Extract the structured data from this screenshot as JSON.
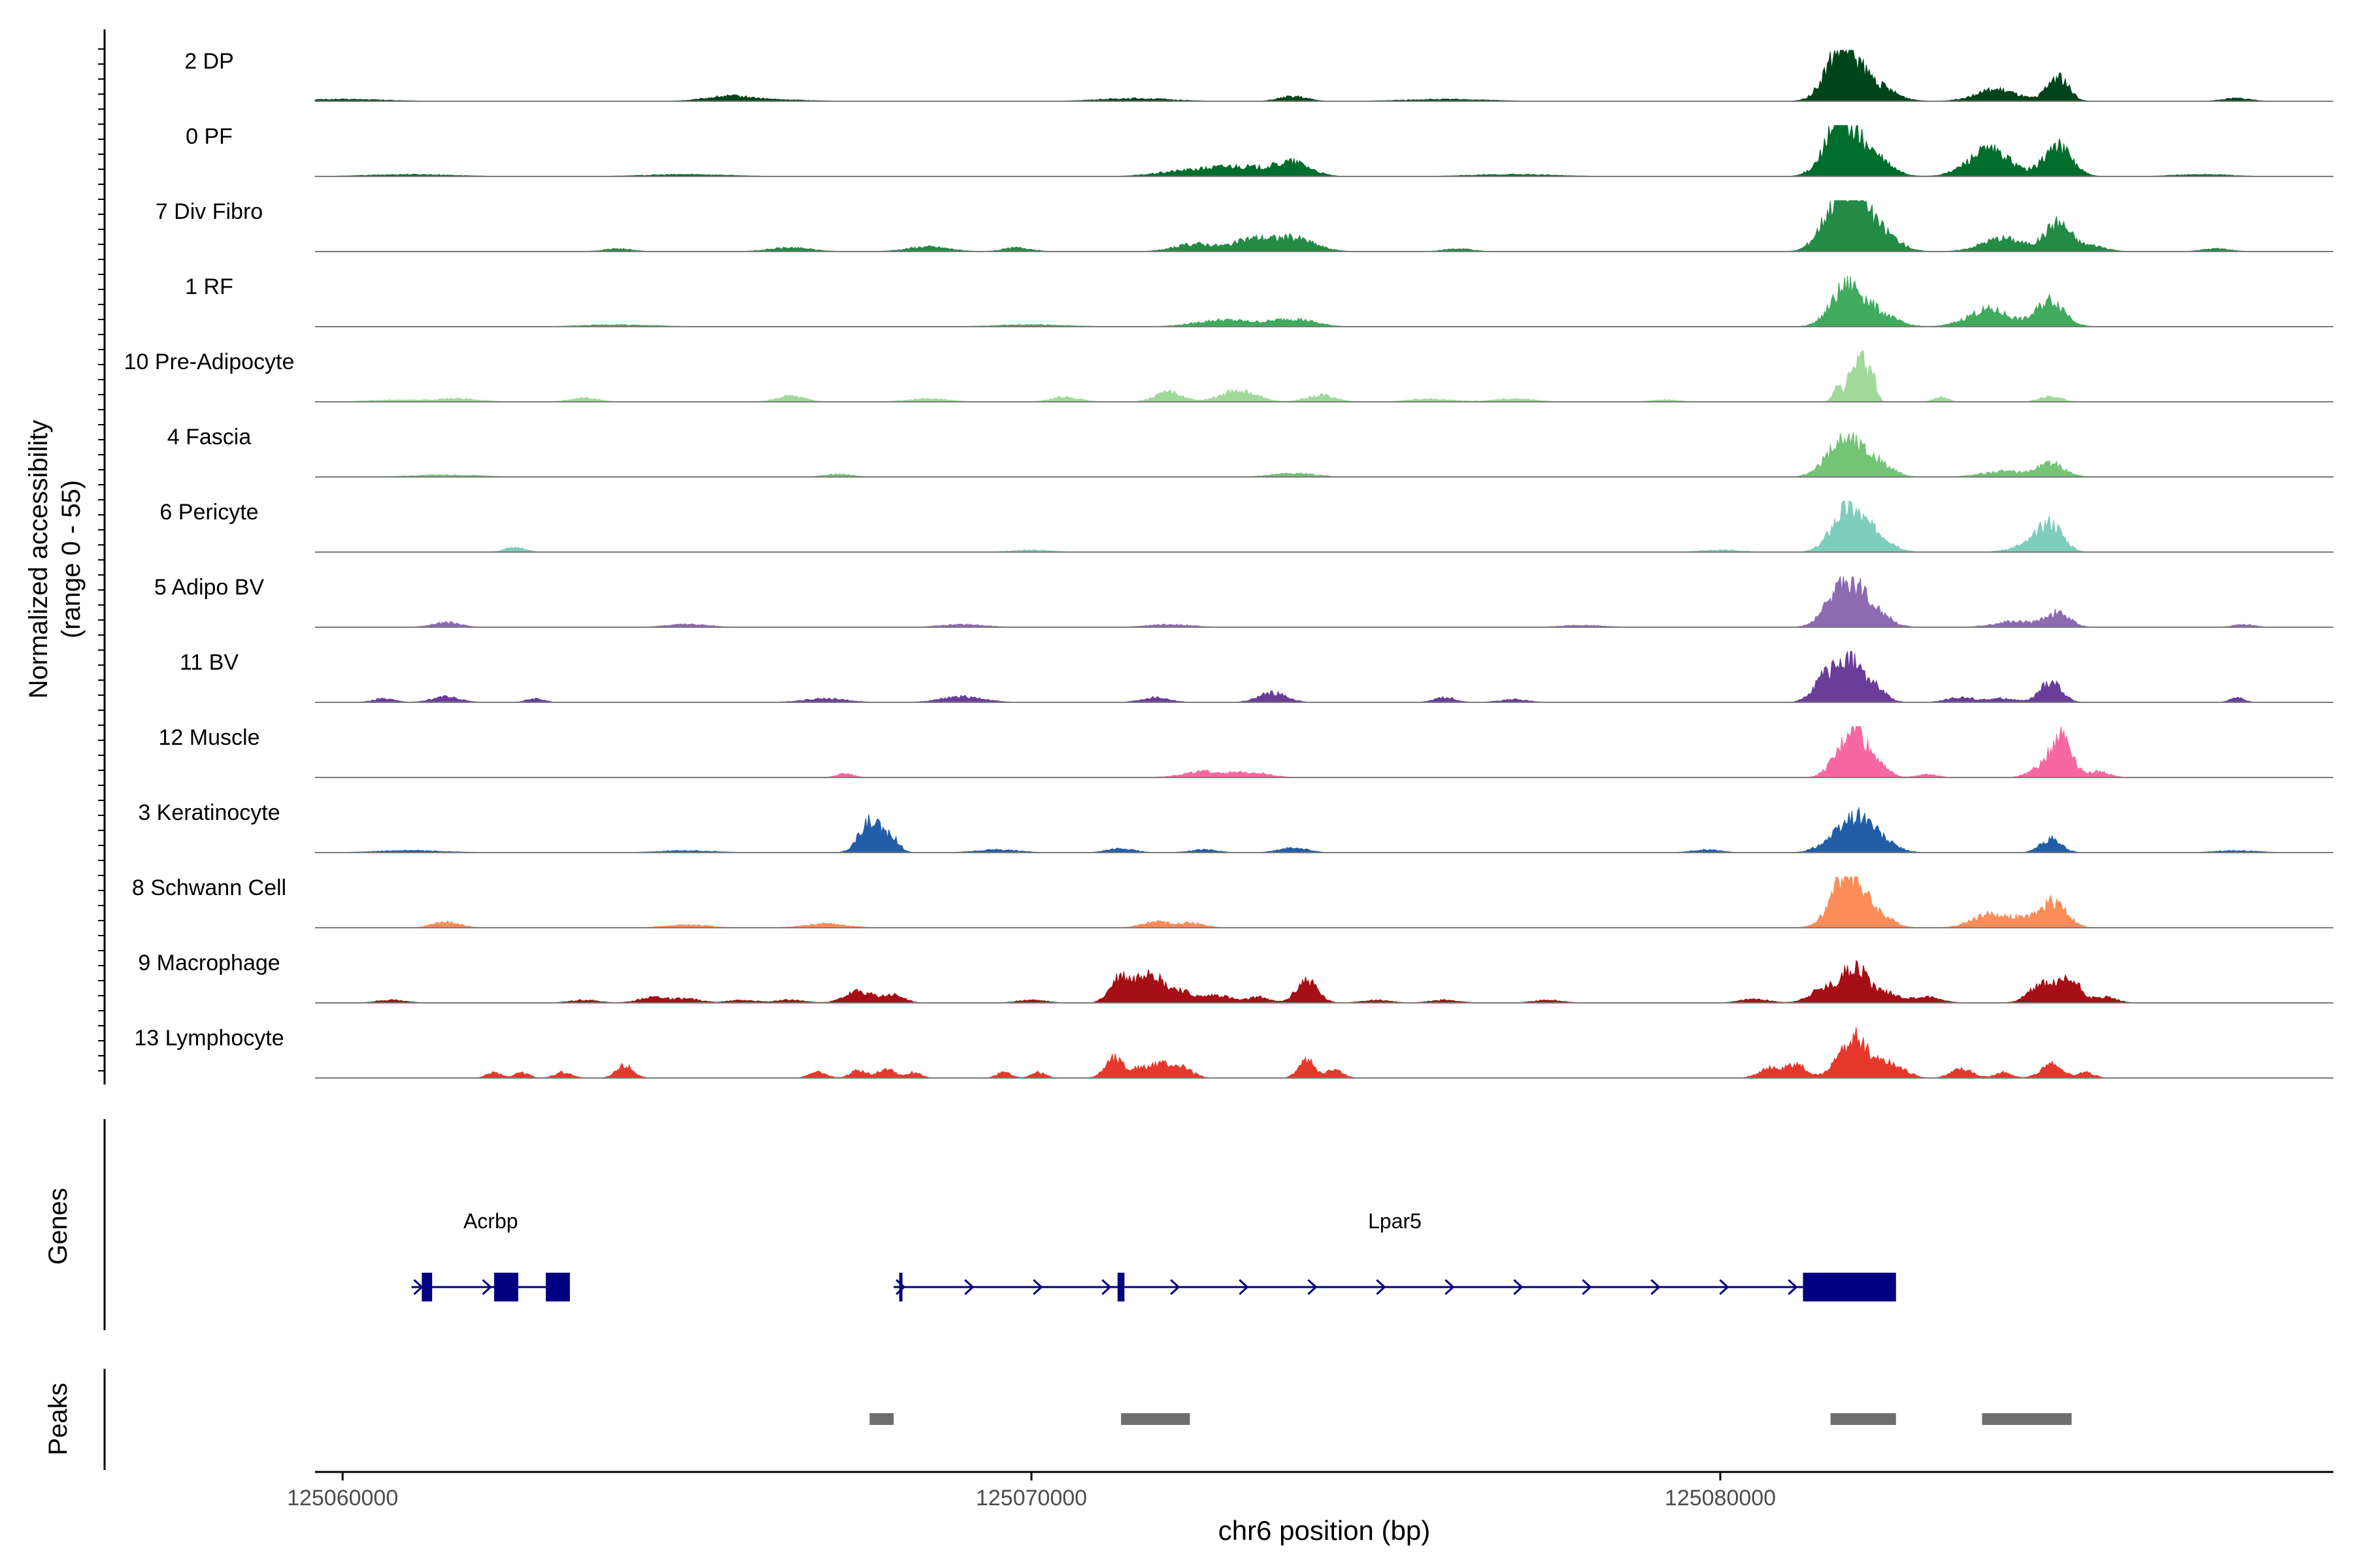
{
  "chart_data": {
    "type": "area",
    "title": "",
    "xlabel": "chr6 position (bp)",
    "ylabel": "Normalized accessibility",
    "ylabel_sub": "(range 0 - 55)",
    "y_range": [
      0,
      55
    ],
    "xlim": [
      125059600,
      125088900
    ],
    "x_ticks": [
      {
        "value": 125060000,
        "label": "125060000"
      },
      {
        "value": 125070000,
        "label": "125070000"
      },
      {
        "value": 125080000,
        "label": "125080000"
      }
    ],
    "tracks": [
      {
        "name": "2 DP",
        "color": "#00441b",
        "peaks": [
          [
            125081750,
            50,
            220
          ],
          [
            125082150,
            20,
            300
          ],
          [
            125084000,
            12,
            300
          ],
          [
            125084900,
            26,
            150
          ],
          [
            125065600,
            4,
            300
          ],
          [
            125073800,
            5,
            200
          ],
          [
            125071500,
            3,
            500
          ],
          [
            125060000,
            2,
            600
          ],
          [
            125066000,
            2,
            600
          ],
          [
            125076000,
            2,
            600
          ],
          [
            125087500,
            3,
            200
          ]
        ]
      },
      {
        "name": "0 PF",
        "color": "#006d2c",
        "peaks": [
          [
            125081750,
            55,
            230
          ],
          [
            125082200,
            20,
            250
          ],
          [
            125083900,
            28,
            300
          ],
          [
            125084900,
            32,
            200
          ],
          [
            125073000,
            10,
            400
          ],
          [
            125073800,
            14,
            250
          ],
          [
            125072200,
            5,
            400
          ],
          [
            125061000,
            2,
            600
          ],
          [
            125065000,
            2,
            600
          ],
          [
            125077000,
            2,
            600
          ],
          [
            125087000,
            2,
            400
          ]
        ]
      },
      {
        "name": "7 Div Fibro",
        "color": "#238b45",
        "peaks": [
          [
            125081900,
            58,
            200
          ],
          [
            125081600,
            30,
            200
          ],
          [
            125082300,
            22,
            250
          ],
          [
            125084100,
            14,
            300
          ],
          [
            125084900,
            30,
            180
          ],
          [
            125085400,
            6,
            200
          ],
          [
            125073200,
            12,
            250
          ],
          [
            125073800,
            14,
            300
          ],
          [
            125072400,
            8,
            300
          ],
          [
            125068500,
            5,
            300
          ],
          [
            125069800,
            4,
            200
          ],
          [
            125066500,
            4,
            300
          ],
          [
            125064000,
            3,
            200
          ],
          [
            125076200,
            3,
            200
          ],
          [
            125087200,
            3,
            200
          ]
        ]
      },
      {
        "name": "1 RF",
        "color": "#41ab5d",
        "peaks": [
          [
            125081850,
            42,
            230
          ],
          [
            125082300,
            12,
            250
          ],
          [
            125083900,
            18,
            300
          ],
          [
            125084800,
            28,
            200
          ],
          [
            125072800,
            7,
            400
          ],
          [
            125073800,
            8,
            300
          ],
          [
            125064000,
            2,
            500
          ],
          [
            125070000,
            2,
            500
          ]
        ]
      },
      {
        "name": "10 Pre-Adipocyte",
        "color": "#a1d99b",
        "peaks": [
          [
            125082050,
            50,
            60
          ],
          [
            125081900,
            42,
            60
          ],
          [
            125082200,
            32,
            60
          ],
          [
            125081700,
            18,
            60
          ],
          [
            125083200,
            5,
            100
          ],
          [
            125084800,
            6,
            150
          ],
          [
            125072000,
            10,
            200
          ],
          [
            125073000,
            12,
            250
          ],
          [
            125074200,
            7,
            200
          ],
          [
            125070500,
            5,
            200
          ],
          [
            125066500,
            6,
            200
          ],
          [
            125063500,
            4,
            200
          ],
          [
            125061700,
            3,
            300
          ],
          [
            125060800,
            2,
            400
          ],
          [
            125068500,
            3,
            300
          ],
          [
            125075800,
            3,
            300
          ],
          [
            125077000,
            3,
            300
          ],
          [
            125079200,
            2,
            200
          ]
        ]
      },
      {
        "name": "4 Fascia",
        "color": "#74c476",
        "peaks": [
          [
            125081800,
            40,
            240
          ],
          [
            125082250,
            15,
            220
          ],
          [
            125084100,
            6,
            300
          ],
          [
            125084800,
            14,
            200
          ],
          [
            125073800,
            4,
            300
          ],
          [
            125061500,
            2,
            500
          ],
          [
            125067200,
            3,
            200
          ]
        ]
      },
      {
        "name": "6 Pericyte",
        "color": "#7fcdbb",
        "peaks": [
          [
            125081850,
            46,
            220
          ],
          [
            125082300,
            16,
            200
          ],
          [
            125084500,
            8,
            250
          ],
          [
            125084800,
            28,
            170
          ],
          [
            125062500,
            5,
            150
          ],
          [
            125070000,
            2,
            300
          ],
          [
            125080000,
            2,
            300
          ]
        ]
      },
      {
        "name": "5 Adipo BV",
        "color": "#8c6bb1",
        "peaks": [
          [
            125081800,
            48,
            230
          ],
          [
            125082200,
            18,
            220
          ],
          [
            125084300,
            6,
            300
          ],
          [
            125084900,
            15,
            170
          ],
          [
            125061500,
            5,
            200
          ],
          [
            125065000,
            3,
            300
          ],
          [
            125069000,
            3,
            300
          ],
          [
            125072000,
            3,
            300
          ],
          [
            125078000,
            2,
            300
          ],
          [
            125087600,
            3,
            150
          ]
        ]
      },
      {
        "name": "11 BV",
        "color": "#6a3d9a",
        "peaks": [
          [
            125081850,
            45,
            160
          ],
          [
            125081500,
            25,
            160
          ],
          [
            125082200,
            18,
            170
          ],
          [
            125084800,
            22,
            150
          ],
          [
            125083500,
            5,
            200
          ],
          [
            125084100,
            4,
            200
          ],
          [
            125061500,
            6,
            200
          ],
          [
            125060600,
            4,
            150
          ],
          [
            125062800,
            4,
            120
          ],
          [
            125069000,
            6,
            300
          ],
          [
            125067000,
            4,
            300
          ],
          [
            125073500,
            10,
            200
          ],
          [
            125071800,
            5,
            200
          ],
          [
            125076000,
            5,
            150
          ],
          [
            125087500,
            5,
            100
          ],
          [
            125077000,
            3,
            200
          ]
        ]
      },
      {
        "name": "12 Muscle",
        "color": "#f768a1",
        "peaks": [
          [
            125081950,
            52,
            130
          ],
          [
            125081700,
            18,
            150
          ],
          [
            125082250,
            20,
            150
          ],
          [
            125084950,
            48,
            150
          ],
          [
            125084600,
            8,
            150
          ],
          [
            125085500,
            6,
            150
          ],
          [
            125072500,
            6,
            300
          ],
          [
            125073200,
            5,
            250
          ],
          [
            125067300,
            4,
            120
          ],
          [
            125083000,
            3,
            150
          ]
        ]
      },
      {
        "name": "3 Keratinocyte",
        "color": "#225ea8",
        "peaks": [
          [
            125067650,
            32,
            150
          ],
          [
            125067950,
            16,
            120
          ],
          [
            125082000,
            38,
            220
          ],
          [
            125081600,
            10,
            200
          ],
          [
            125082400,
            8,
            200
          ],
          [
            125084800,
            14,
            150
          ],
          [
            125073800,
            5,
            200
          ],
          [
            125071300,
            4,
            200
          ],
          [
            125072500,
            3,
            200
          ],
          [
            125061000,
            2,
            500
          ],
          [
            125065000,
            2,
            400
          ],
          [
            125069500,
            3,
            300
          ],
          [
            125079800,
            3,
            200
          ],
          [
            125087500,
            2,
            300
          ]
        ]
      },
      {
        "name": "8 Schwann Cell",
        "color": "#fc8d59",
        "peaks": [
          [
            125081850,
            60,
            220
          ],
          [
            125082300,
            12,
            200
          ],
          [
            125083900,
            14,
            250
          ],
          [
            125084850,
            28,
            180
          ],
          [
            125084400,
            8,
            200
          ],
          [
            125061500,
            6,
            200
          ],
          [
            125067000,
            4,
            300
          ],
          [
            125071800,
            6,
            200
          ],
          [
            125072300,
            5,
            200
          ],
          [
            125065000,
            3,
            300
          ]
        ]
      },
      {
        "name": "9 Macrophage",
        "color": "#a50f15",
        "peaks": [
          [
            125071300,
            28,
            150
          ],
          [
            125071700,
            34,
            150
          ],
          [
            125072100,
            14,
            200
          ],
          [
            125072700,
            8,
            200
          ],
          [
            125067500,
            12,
            200
          ],
          [
            125068000,
            8,
            150
          ],
          [
            125074000,
            24,
            150
          ],
          [
            125073300,
            6,
            150
          ],
          [
            125081950,
            38,
            180
          ],
          [
            125081500,
            14,
            200
          ],
          [
            125082400,
            10,
            200
          ],
          [
            125083000,
            6,
            200
          ],
          [
            125084700,
            20,
            200
          ],
          [
            125085100,
            22,
            150
          ],
          [
            125085600,
            6,
            150
          ],
          [
            125060700,
            3,
            200
          ],
          [
            125063500,
            3,
            200
          ],
          [
            125064500,
            6,
            200
          ],
          [
            125065000,
            4,
            200
          ],
          [
            125065800,
            3,
            200
          ],
          [
            125066500,
            3,
            200
          ],
          [
            125070000,
            3,
            200
          ],
          [
            125075000,
            3,
            200
          ],
          [
            125076000,
            3,
            200
          ],
          [
            125077500,
            3,
            200
          ],
          [
            125080500,
            4,
            200
          ]
        ]
      },
      {
        "name": "13 Lymphocyte",
        "color": "#e6392b",
        "peaks": [
          [
            125071200,
            22,
            130
          ],
          [
            125071600,
            10,
            150
          ],
          [
            125071900,
            12,
            150
          ],
          [
            125072200,
            10,
            150
          ],
          [
            125074000,
            18,
            120
          ],
          [
            125074400,
            8,
            120
          ],
          [
            125081750,
            22,
            150
          ],
          [
            125082000,
            38,
            120
          ],
          [
            125082300,
            18,
            150
          ],
          [
            125082600,
            10,
            150
          ],
          [
            125083500,
            10,
            150
          ],
          [
            125084800,
            14,
            150
          ],
          [
            125085300,
            6,
            120
          ],
          [
            125064100,
            14,
            120
          ],
          [
            125063200,
            6,
            120
          ],
          [
            125062200,
            6,
            100
          ],
          [
            125062600,
            6,
            100
          ],
          [
            125066900,
            6,
            120
          ],
          [
            125067500,
            8,
            120
          ],
          [
            125067900,
            10,
            120
          ],
          [
            125068300,
            6,
            100
          ],
          [
            125069600,
            6,
            100
          ],
          [
            125070100,
            6,
            100
          ],
          [
            125080700,
            10,
            150
          ],
          [
            125081100,
            14,
            150
          ],
          [
            125084100,
            6,
            120
          ]
        ]
      }
    ],
    "genes_label": "Genes",
    "genes": [
      {
        "name": "Acrbp",
        "start": 125061000,
        "end": 125063300,
        "strand": "+",
        "exons": [
          [
            125061150,
            125061300
          ],
          [
            125062200,
            125062550
          ],
          [
            125062950,
            125063300
          ]
        ]
      },
      {
        "name": "Lpar5",
        "start": 125068000,
        "end": 125082550,
        "strand": "+",
        "exons": [
          [
            125068080,
            125068120
          ],
          [
            125071250,
            125071350
          ],
          [
            125081200,
            125082550
          ]
        ]
      }
    ],
    "gene_color": "#000080",
    "peaks_label": "Peaks",
    "peak_regions": [
      [
        125067650,
        125068000
      ],
      [
        125071300,
        125072300
      ],
      [
        125081600,
        125082550
      ],
      [
        125083800,
        125085100
      ]
    ],
    "peak_color": "#6e6e6e"
  }
}
